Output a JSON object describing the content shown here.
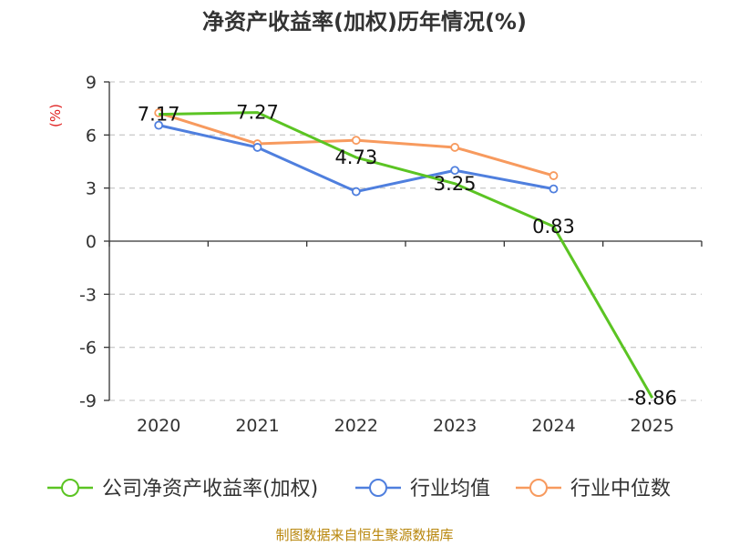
{
  "chart_data": {
    "type": "line",
    "title": "净资产收益率(加权)历年情况(%)",
    "ylabel": "(%)",
    "xlabel": "",
    "categories": [
      "2020",
      "2021",
      "2022",
      "2023",
      "2024",
      "2025"
    ],
    "ylim": [
      -9,
      9
    ],
    "yticks": [
      9,
      6,
      3,
      0,
      -3,
      -6,
      -9
    ],
    "grid": true,
    "legend_position": "bottom",
    "series": [
      {
        "name": "公司净资产收益率(加权)",
        "color": "#5bc423",
        "values": [
          7.17,
          7.27,
          4.73,
          3.25,
          0.83,
          -8.86
        ],
        "labels": [
          "7.17",
          "7.27",
          "4.73",
          "3.25",
          "0.83",
          "-8.86"
        ]
      },
      {
        "name": "行业均值",
        "color": "#4f7fde",
        "values": [
          6.55,
          5.3,
          2.8,
          4.0,
          2.95,
          null
        ]
      },
      {
        "name": "行业中位数",
        "color": "#f79a5e",
        "values": [
          7.25,
          5.5,
          5.7,
          5.3,
          3.7,
          null
        ]
      }
    ]
  },
  "footer": "制图数据来自恒生聚源数据库"
}
